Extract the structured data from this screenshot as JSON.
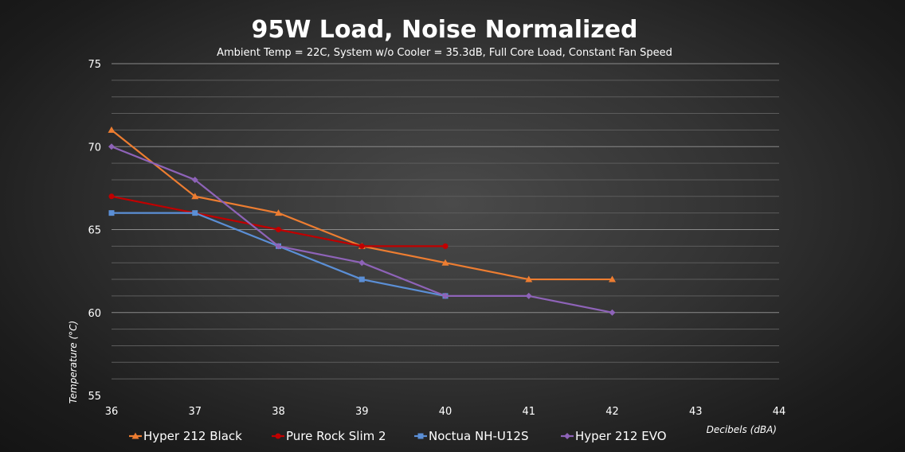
{
  "chart_data": {
    "type": "line",
    "title": "95W Load, Noise Normalized",
    "subtitle": "Ambient Temp = 22C, System w/o Cooler = 35.3dB, Full Core Load, Constant Fan Speed",
    "xlabel": "Decibels (dBA)",
    "ylabel": "Temperature  (°C)",
    "xlim": [
      36,
      44
    ],
    "ylim": [
      55,
      75
    ],
    "x_ticks": [
      36,
      37,
      38,
      39,
      40,
      41,
      42,
      43,
      44
    ],
    "y_ticks": [
      55,
      60,
      65,
      70,
      75
    ],
    "grid": true,
    "legend_position": "bottom",
    "series": [
      {
        "name": "Hyper 212 Black",
        "color": "#ed7d31",
        "marker": "triangle",
        "x": [
          36,
          37,
          38,
          39,
          40,
          41,
          42
        ],
        "values": [
          71,
          67,
          66,
          64,
          63,
          62,
          62
        ]
      },
      {
        "name": "Pure Rock Slim 2",
        "color": "#c00000",
        "marker": "circle",
        "x": [
          36,
          37,
          38,
          39,
          40
        ],
        "values": [
          67,
          66,
          65,
          64,
          64
        ]
      },
      {
        "name": "Noctua NH-U12S",
        "color": "#5b8fd6",
        "marker": "square",
        "x": [
          36,
          37,
          38,
          39,
          40
        ],
        "values": [
          66,
          66,
          64,
          62,
          61
        ]
      },
      {
        "name": "Hyper 212 EVO",
        "color": "#8e63b8",
        "marker": "diamond",
        "x": [
          36,
          37,
          38,
          39,
          40,
          41,
          42
        ],
        "values": [
          70,
          68,
          64,
          63,
          61,
          61,
          60
        ]
      }
    ]
  }
}
